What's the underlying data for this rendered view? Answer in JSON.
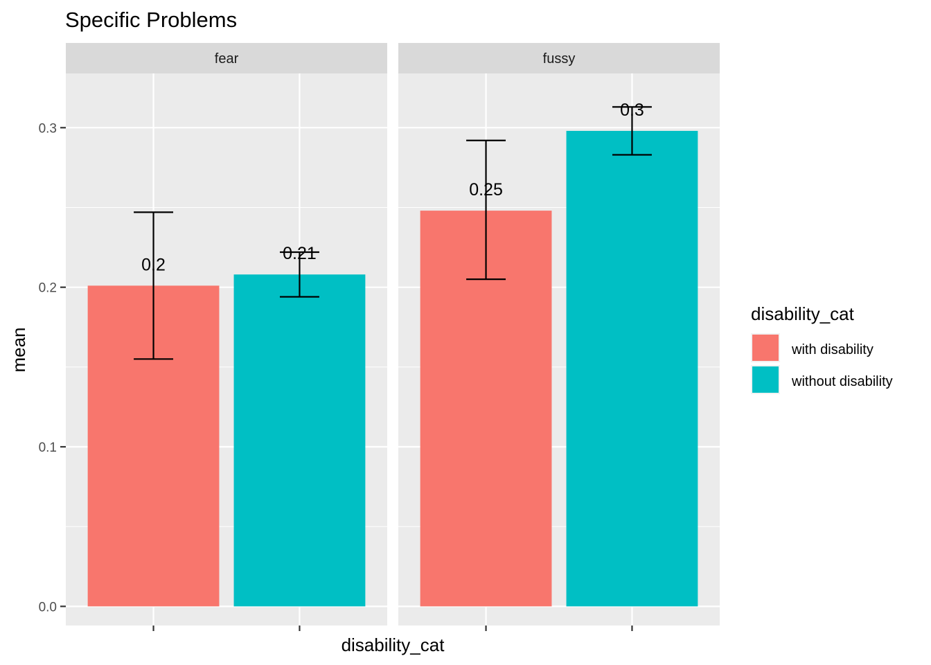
{
  "chart_data": {
    "type": "bar",
    "title": "Specific Problems",
    "xlabel": "disability_cat",
    "ylabel": "mean",
    "ylim": [
      -0.012,
      0.334
    ],
    "yticks": [
      0.0,
      0.1,
      0.2,
      0.3
    ],
    "ytick_labels": [
      "0.0",
      "0.1",
      "0.2",
      "0.3"
    ],
    "grid": true,
    "legend": {
      "title": "disability_cat",
      "position": "right",
      "entries": [
        {
          "label": "with disability",
          "color": "#F8766D"
        },
        {
          "label": "without disability",
          "color": "#00BFC4"
        }
      ]
    },
    "categories": [
      "with disability",
      "without disability"
    ],
    "facets": [
      {
        "label": "fear",
        "bars": [
          {
            "category": "with disability",
            "value": 0.201,
            "ymin": 0.155,
            "ymax": 0.247,
            "label": "0.2"
          },
          {
            "category": "without disability",
            "value": 0.208,
            "ymin": 0.194,
            "ymax": 0.222,
            "label": "0.21"
          }
        ]
      },
      {
        "label": "fussy",
        "bars": [
          {
            "category": "with disability",
            "value": 0.248,
            "ymin": 0.205,
            "ymax": 0.292,
            "label": "0.25"
          },
          {
            "category": "without disability",
            "value": 0.298,
            "ymin": 0.283,
            "ymax": 0.313,
            "label": "0.3"
          }
        ]
      }
    ]
  }
}
